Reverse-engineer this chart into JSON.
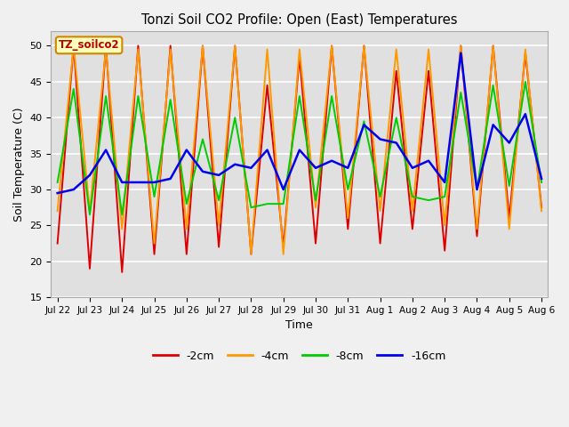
{
  "title": "Tonzi Soil CO2 Profile: Open (East) Temperatures",
  "xlabel": "Time",
  "ylabel": "Soil Temperature (C)",
  "ylim": [
    15,
    52
  ],
  "yticks": [
    15,
    20,
    25,
    30,
    35,
    40,
    45,
    50
  ],
  "bg_color": "#e0e0e0",
  "fig_color": "#f0f0f0",
  "legend_label": "TZ_soilco2",
  "legend_box_color": "#ffffbb",
  "legend_box_edge": "#cc8800",
  "series": {
    "-2cm": {
      "color": "#dd0000",
      "lw": 1.4
    },
    "-4cm": {
      "color": "#ff9900",
      "lw": 1.4
    },
    "-8cm": {
      "color": "#00cc00",
      "lw": 1.4
    },
    "-16cm": {
      "color": "#0000ee",
      "lw": 1.8
    }
  },
  "tick_labels": [
    "Jul 22",
    "Jul 23",
    "Jul 24",
    "Jul 25",
    "Jul 26",
    "Jul 27",
    "Jul 28",
    "Jul 29",
    "Jul 30",
    "Jul 31",
    "Aug 1",
    "Aug 2",
    "Aug 3",
    "Aug 4",
    "Aug 5",
    "Aug 6"
  ],
  "data": {
    "t": [
      0,
      1,
      2,
      3,
      4,
      5,
      6,
      7,
      8,
      9,
      10,
      11,
      12,
      13,
      14,
      15,
      16,
      17,
      18,
      19,
      20,
      21,
      22,
      23,
      24,
      25,
      26,
      27,
      28,
      29,
      30
    ],
    "cm2": [
      22.5,
      50,
      19,
      50,
      18.5,
      50,
      21,
      50,
      21,
      50,
      22,
      50,
      21,
      44.5,
      22,
      48.5,
      22.5,
      50,
      24.5,
      50,
      22.5,
      46.5,
      24.5,
      46.5,
      21.5,
      50,
      23.5,
      50,
      26,
      49,
      27.5
    ],
    "cm4": [
      27,
      50,
      27,
      49.5,
      24.5,
      49.5,
      22.5,
      49.5,
      24.5,
      50,
      25,
      50,
      21,
      49.5,
      21,
      49.5,
      27.5,
      50,
      26,
      50,
      27,
      49.5,
      27,
      49.5,
      25,
      50,
      24.5,
      50,
      24.5,
      49.5,
      27
    ],
    "cm8": [
      31,
      44,
      26.5,
      43,
      26.5,
      43,
      29,
      42.5,
      28,
      37,
      28.5,
      40,
      27.5,
      28,
      28,
      43,
      28.5,
      43,
      30,
      39.5,
      29,
      40,
      29,
      28.5,
      29,
      43.5,
      30,
      44.5,
      30.5,
      45,
      31
    ],
    "cm16": [
      29.5,
      30,
      32,
      35.5,
      31,
      31,
      31,
      31.5,
      35.5,
      32.5,
      32,
      33.5,
      33,
      35.5,
      30,
      35.5,
      33,
      34,
      33,
      39,
      37,
      36.5,
      33,
      34,
      31,
      49,
      30,
      39,
      36.5,
      40.5,
      31.5
    ]
  }
}
